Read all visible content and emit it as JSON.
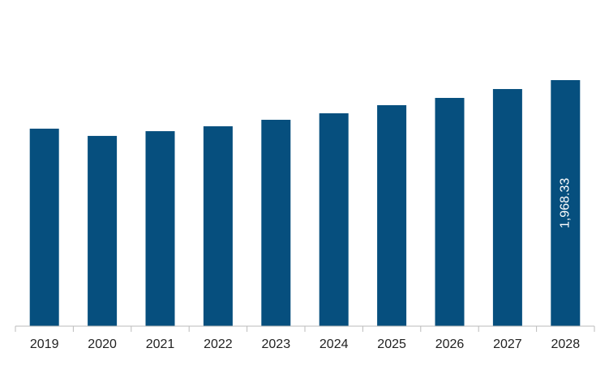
{
  "chart_data": {
    "type": "bar",
    "categories": [
      "2019",
      "2020",
      "2021",
      "2022",
      "2023",
      "2024",
      "2025",
      "2026",
      "2027",
      "2028"
    ],
    "values": [
      1580,
      1522,
      1560,
      1599,
      1651,
      1703,
      1768,
      1826,
      1897,
      1968.33
    ],
    "value_labels": [
      null,
      null,
      null,
      null,
      null,
      null,
      null,
      null,
      null,
      "1,968.33"
    ],
    "color": "#064f7e"
  }
}
